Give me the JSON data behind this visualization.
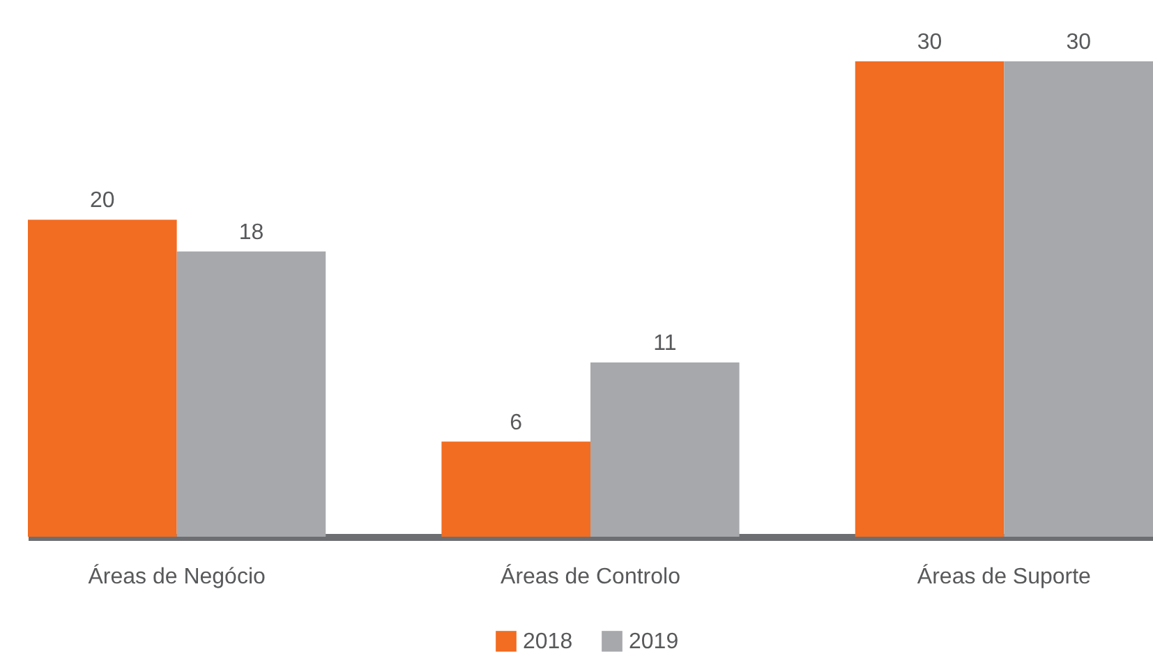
{
  "chart_data": {
    "type": "bar",
    "categories": [
      "Áreas de Negócio",
      "Áreas de Controlo",
      "Áreas de Suporte"
    ],
    "series": [
      {
        "name": "2018",
        "color": "#f26c21",
        "values": [
          20,
          6,
          30
        ]
      },
      {
        "name": "2019",
        "color": "#a7a8ab",
        "values": [
          18,
          11,
          30
        ]
      }
    ],
    "data_labels": true,
    "legend": "bottom",
    "grid": false
  }
}
